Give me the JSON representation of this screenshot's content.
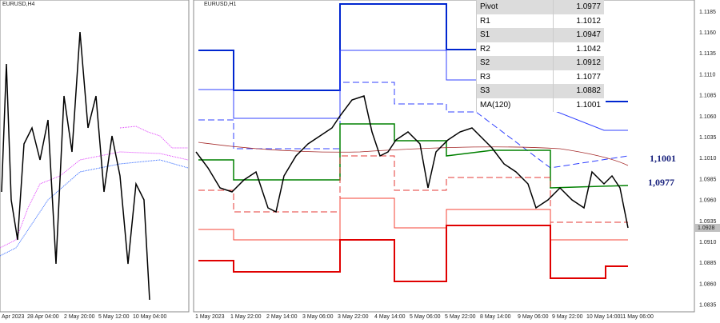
{
  "left_chart": {
    "title": "EURUSD,H4",
    "time_labels": [
      "Apr 2023",
      "28 Apr 04:00",
      "2 May 20:00",
      "5 May 12:00",
      "10 May 04:00"
    ]
  },
  "right_chart": {
    "title": "EURUSD,H1",
    "time_labels": [
      "1 May 2023",
      "1 May 22:00",
      "2 May 14:00",
      "3 May 06:00",
      "3 May 22:00",
      "4 May 14:00",
      "5 May 06:00",
      "5 May 22:00",
      "8 May 14:00",
      "9 May 06:00",
      "9 May 22:00",
      "10 May 14:00",
      "11 May 06:00"
    ],
    "price_labels": [
      "1.1185",
      "1.1160",
      "1.1135",
      "1.1110",
      "1.1085",
      "1.1060",
      "1.1035",
      "1.1010",
      "1.0985",
      "1.0960",
      "1.0935",
      "1.0910",
      "1.0885",
      "1.0860",
      "1.0835"
    ],
    "current_price": "1.0928",
    "annotations": [
      "1,1001",
      "1,0977"
    ]
  },
  "pivot_table": {
    "rows": [
      [
        "Pivot",
        "1.0977"
      ],
      [
        "R1",
        "1.1012"
      ],
      [
        "S1",
        "1.0947"
      ],
      [
        "R2",
        "1.1042"
      ],
      [
        "S2",
        "1.0912"
      ],
      [
        "R3",
        "1.1077"
      ],
      [
        "S3",
        "1.0882"
      ],
      [
        "MA(120)",
        "1.1001"
      ]
    ]
  }
}
